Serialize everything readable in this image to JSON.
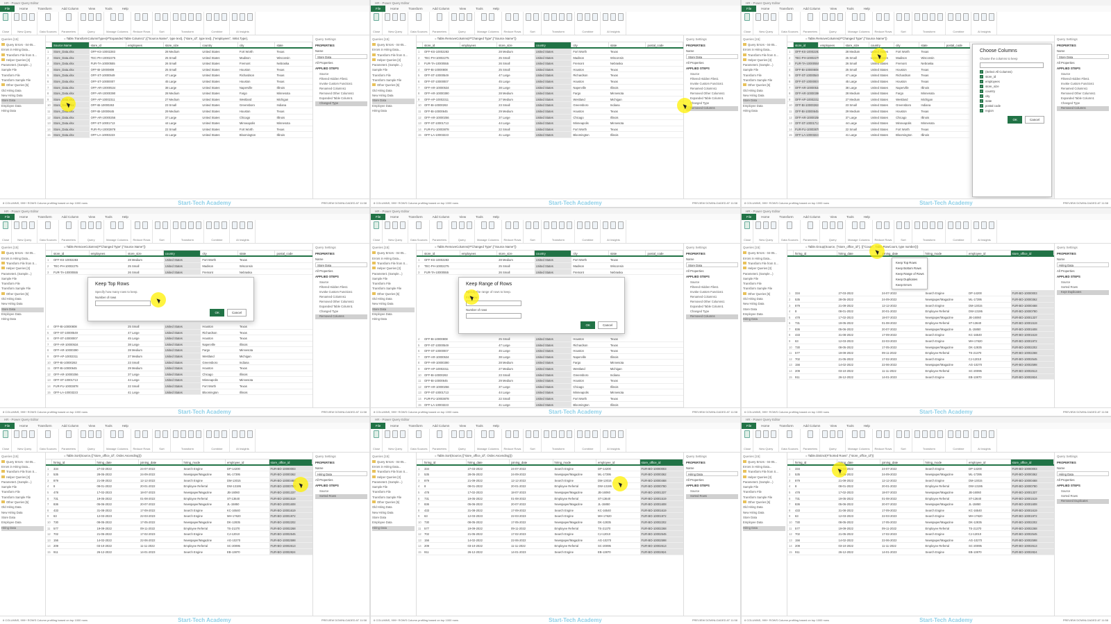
{
  "common": {
    "tabs": [
      "File",
      "Home",
      "Transform",
      "Add Column",
      "View",
      "Tools",
      "Help"
    ],
    "ribbon_groups": [
      "Close",
      "New Query",
      "Data Sources",
      "Parameters",
      "Query",
      "Manage Columns",
      "Reduce Rows",
      "Sort",
      "Transform",
      "Combine",
      "AI Insights"
    ],
    "queries_header": "Queries [15]",
    "queries": [
      {
        "label": "Query Errors - 04-05...",
        "folder": true
      },
      {
        "label": "Errors in Hiring Data..."
      },
      {
        "label": "Transform File from S...",
        "folder": true
      },
      {
        "label": "Helper Queries [3]",
        "folder": true
      },
      {
        "label": "Parameter1 (Sample...)"
      },
      {
        "label": "Sample File"
      },
      {
        "label": "Transform File"
      },
      {
        "label": "Transform Sample File"
      },
      {
        "label": "Other Queries [5]",
        "folder": true
      },
      {
        "label": "Old Hiring Data"
      },
      {
        "label": "New Hiring Data"
      },
      {
        "label": "Store Data"
      },
      {
        "label": "Employee Data"
      },
      {
        "label": "Hiring Data"
      }
    ],
    "settings_header": "Query Settings",
    "properties": "PROPERTIES",
    "name_label": "Name",
    "all_properties": "All Properties",
    "applied_steps": "APPLIED STEPS",
    "watermark": "Start-Tech Academy",
    "preview": "PREVIEW DOWNLOADED AT 11:58"
  },
  "datasets": {
    "store": [
      [
        "Store_Data.xlsx",
        "OFF-KS-10002283",
        "",
        "28 Medium",
        "United States",
        "Fort Worth",
        "Texas"
      ],
      [
        "Store_Data.xlsx",
        "TEC-PH-10002275",
        "",
        "25 Small",
        "United States",
        "Madison",
        "Wisconsin"
      ],
      [
        "Store_Data.xlsx",
        "FUR-TA-10000555",
        "",
        "26 Small",
        "United States",
        "Fremont",
        "Nebraska"
      ],
      [
        "Store_Data.xlsx",
        "OFF-BI-10000808",
        "",
        "25 Small",
        "United States",
        "Houston",
        "Texas"
      ],
      [
        "Store_Data.xlsx",
        "OFF-ST-10000549",
        "",
        "47 Large",
        "United States",
        "Richardson",
        "Texas"
      ],
      [
        "Store_Data.xlsx",
        "OFF-ST-10000007",
        "",
        "45 Large",
        "United States",
        "Houston",
        "Texas"
      ],
      [
        "Store_Data.xlsx",
        "OFF-AR-10000534",
        "",
        "38 Large",
        "United States",
        "Naperville",
        "Illinois"
      ],
      [
        "Store_Data.xlsx",
        "OFF-AR-10000390",
        "",
        "28 Medium",
        "United States",
        "Fargo",
        "Minnesota"
      ],
      [
        "Store_Data.xlsx",
        "OFF-AP-10002311",
        "",
        "27 Medium",
        "United States",
        "Westland",
        "Michigan"
      ],
      [
        "Store_Data.xlsx",
        "OFF-BI-10000263",
        "",
        "23 Small",
        "United States",
        "Greensboro",
        "Indiana"
      ],
      [
        "Store_Data.xlsx",
        "OFF-BI-10000645",
        "",
        "29 Medium",
        "United States",
        "Houston",
        "Texas"
      ],
      [
        "Store_Data.xlsx",
        "OFF-AR-10000256",
        "",
        "37 Large",
        "United States",
        "Chicago",
        "Illinois"
      ],
      [
        "Store_Data.xlsx",
        "OFF-ST-10001713",
        "",
        "44 Large",
        "United States",
        "Minneapolis",
        "Minnesota"
      ],
      [
        "Store_Data.xlsx",
        "FUR-FU-10003878",
        "",
        "22 Small",
        "United States",
        "Fort Worth",
        "Texas"
      ],
      [
        "Store_Data.xlsx",
        "OFF-LA-10003223",
        "",
        "41 Large",
        "United States",
        "Bloomington",
        "Illinois"
      ]
    ],
    "hiring": [
      [
        "334",
        "27-03-2022",
        "24-07-2022",
        "Search Engine",
        "DP-14200",
        "FUR-BO-10000003"
      ],
      [
        "535",
        "28-05-2022",
        "24-09-2022",
        "Newspaper/Magazine",
        "ML-17395",
        "FUR-BO-10000362"
      ],
      [
        "879",
        "21-09-2022",
        "12-12-2022",
        "Search Engine",
        "DM-13015",
        "FUR-BO-10000468"
      ],
      [
        "8",
        "08-01-2022",
        "20-01-2022",
        "Employee Referral",
        "DW-13195",
        "FUR-BO-10000780"
      ],
      [
        "478",
        "17-02-2023",
        "18-07-2023",
        "Newspaper/Magazine",
        "JB-16060",
        "FUR-BO-10001337"
      ],
      [
        "731",
        "19-05-2022",
        "01-08-2022",
        "Employee Referral",
        "ST-13640",
        "FUR-BO-10001519"
      ],
      [
        "836",
        "05-06-2022",
        "20-07-2022",
        "Newspaper/Magazine",
        "JL-15850",
        "FUR-BO-10001608"
      ],
      [
        "433",
        "31-08-2022",
        "17-09-2022",
        "Search Engine",
        "KC-16540",
        "FUR-BO-10001619"
      ],
      [
        "63",
        "12-03-2023",
        "22-03-2023",
        "Search Engine",
        "MH-17620",
        "FUR-BO-10001972"
      ],
      [
        "730",
        "08-05-2022",
        "17-05-2022",
        "Newspaper/Magazine",
        "DK-12835",
        "FUR-BO-10002202"
      ],
      [
        "577",
        "19-09-2022",
        "09-11-2022",
        "Employee Referral",
        "TS-21370",
        "FUR-BO-10002268"
      ],
      [
        "702",
        "21-05-2022",
        "17-02-2023",
        "Search Engine",
        "CJ-12010",
        "FUR-BO-10002545"
      ],
      [
        "156",
        "14-02-2022",
        "22-06-2022",
        "Newspaper/Magazine",
        "AG-10270",
        "FUR-BO-10002598"
      ],
      [
        "209",
        "03-10-2022",
        "11-11-2022",
        "Employee Referral",
        "SC-20095",
        "FUR-BO-10002613"
      ],
      [
        "911",
        "26-12-2022",
        "14-01-2023",
        "Search Engine",
        "EB-13870",
        "FUR-BO-10002824"
      ]
    ]
  },
  "panels": [
    {
      "title": "HR - Power Query Editor",
      "dataset": "store",
      "formula": "= Table.TransformColumnTypes(#\"Expanded Table Column1\",{{\"Source.Name\", type text}, {\"store_id\", type text}, {\"employees\", Int64.Type},",
      "columns": [
        "Source.Name",
        "store_id",
        "employees",
        "store_size",
        "country",
        "city",
        "state"
      ],
      "selcol": 0,
      "selquery": 11,
      "name": "Store Data",
      "steps": [
        "Source",
        "Filtered Hidden Files1",
        "Invoke Custom Function1",
        "Renamed Columns1",
        "Removed Other Columns1",
        "Expanded Table Column1",
        "Changed Type"
      ],
      "selstep": 6,
      "status": "8 COLUMNS, 999+ ROWS   Column profiling based on top 1000 rows"
    },
    {
      "title": "HR - Power Query Editor",
      "dataset": "store",
      "drop": 1,
      "formula": "= Table.RemoveColumns(#\"Changed Type\",{\"Source.Name\"})",
      "columns": [
        "store_id",
        "employees",
        "store_size",
        "country",
        "city",
        "state",
        "postal_code"
      ],
      "selcol": 3,
      "selquery": 11,
      "name": "Store Data",
      "steps": [
        "Source",
        "Filtered Hidden Files1",
        "Invoke Custom Function1",
        "Renamed Columns1",
        "Removed Other Columns1",
        "Expanded Table Column1",
        "Changed Type",
        "Removed Columns"
      ],
      "selstep": 7,
      "status": "8 COLUMNS, 999+ ROWS   Column profiling based on top 1000 rows"
    },
    {
      "title": "HR - Power Query Editor",
      "dataset": "store",
      "drop": 1,
      "formula": "= Table.RemoveColumns(#\"Changed Type\",{\"Source.Name\"})",
      "columns": [
        "store_id",
        "employees",
        "store_size",
        "country",
        "city",
        "state",
        "postal_code"
      ],
      "selcol": 0,
      "selquery": 11,
      "name": "Store Data",
      "steps": [
        "Source",
        "Filtered Hidden Files1",
        "Invoke Custom Function1",
        "Renamed Columns1",
        "Removed Other Columns1",
        "Expanded Table Column1",
        "Changed Type",
        "Removed Columns"
      ],
      "selstep": 7,
      "status": "8 COLUMNS, 999+ ROWS   Column profiling based on top 1000 rows",
      "dialog": {
        "type": "choose",
        "title": "Choose Columns",
        "subtitle": "Choose the columns to keep",
        "items": [
          "(Select All Columns)",
          "store_id",
          "employees",
          "store_size",
          "country",
          "city",
          "state",
          "postal code",
          "region"
        ],
        "ok": "OK",
        "cancel": "Cancel"
      }
    },
    {
      "title": "HR - Power Query Editor",
      "dataset": "store",
      "drop": 1,
      "formula": "= Table.RemoveColumns(#\"Changed Type\",{\"Source.Name\"})",
      "columns": [
        "store_id",
        "employees",
        "store_size",
        "country",
        "city",
        "state",
        "postal_code"
      ],
      "selcol": 3,
      "selquery": 11,
      "name": "Store Data",
      "steps": [
        "Source",
        "Filtered Hidden Files1",
        "Invoke Custom Function1",
        "Renamed Columns1",
        "Removed Other Columns1",
        "Expanded Table Column1",
        "Changed Type",
        "Removed Columns"
      ],
      "selstep": 7,
      "status": "8 COLUMNS, 999+ ROWS   Column profiling based on top 1000 rows",
      "dialog": {
        "type": "top",
        "title": "Keep Top Rows",
        "subtitle": "Specify how many rows to keep.",
        "fields": [
          "Number of rows"
        ],
        "ok": "OK",
        "cancel": "Cancel"
      }
    },
    {
      "title": "HR - Power Query Editor",
      "dataset": "store",
      "drop": 1,
      "formula": "= Table.RemoveColumns(#\"Changed Type\",{\"Source.Name\"})",
      "columns": [
        "store_id",
        "employees",
        "store_size",
        "country",
        "city",
        "state",
        "postal_code"
      ],
      "selcol": 3,
      "selquery": 11,
      "name": "Store Data",
      "steps": [
        "Source",
        "Filtered Hidden Files1",
        "Invoke Custom Function1",
        "Renamed Columns1",
        "Removed Other Columns1",
        "Expanded Table Column1",
        "Changed Type",
        "Removed Columns"
      ],
      "selstep": 7,
      "status": "8 COLUMNS, 999+ ROWS   Column profiling based on top 1000 rows",
      "dialog": {
        "type": "range",
        "title": "Keep Range of Rows",
        "subtitle": "Specify the range of rows to keep.",
        "fields": [
          "First row",
          "Number of rows"
        ],
        "ok": "OK",
        "cancel": "Cancel"
      }
    },
    {
      "title": "HR - Power Query Editor",
      "dataset": "hiring",
      "formula": "= Table.Group(Source, {\"store_office_id\"}, {{\"Count\", Table.RowCount, type number}})",
      "columns": [
        "hiring_id",
        "hiring_date",
        "joining_date",
        "hiring_mode",
        "employee_id",
        "store_office_id"
      ],
      "selcol": 5,
      "selquery": 13,
      "name": "Hiring Data",
      "steps": [
        "Source",
        "Sorted Rows",
        "Kept Duplicates"
      ],
      "selstep": 2,
      "status": "6 COLUMNS, 999+ ROWS   Column profiling based on top 1000 rows",
      "menu": [
        "Keep Top Rows",
        "Keep Bottom Rows",
        "Keep Range of Rows",
        "Keep Duplicates",
        "Keep Errors"
      ]
    },
    {
      "title": "HR - Power Query Editor",
      "dataset": "hiring",
      "formula": "= Table.Sort(Source,{{\"store_office_id\", Order.Ascending}})",
      "columns": [
        "hiring_id",
        "hiring_date",
        "joining_date",
        "hiring_mode",
        "employee_id",
        "store_office_id"
      ],
      "selcol": 5,
      "selquery": 13,
      "name": "Hiring Data",
      "steps": [
        "Source",
        "Sorted Rows"
      ],
      "selstep": 1,
      "status": "6 COLUMNS, 999+ ROWS   Column profiling based on top 1000 rows"
    },
    {
      "title": "HR - Power Query Editor",
      "dataset": "hiring",
      "formula": "= Table.Sort(Source,{{\"store_office_id\", Order.Ascending}})",
      "columns": [
        "hiring_id",
        "hiring_date",
        "joining_date",
        "hiring_mode",
        "employee_id",
        "store_office_id"
      ],
      "selcol": 5,
      "selquery": 13,
      "name": "Hiring Data",
      "steps": [
        "Source",
        "Sorted Rows"
      ],
      "selstep": 1,
      "status": "6 COLUMNS, 999+ ROWS   Column profiling based on top 1000 rows"
    },
    {
      "title": "HR - Power Query Editor",
      "dataset": "hiring",
      "formula": "= Table.Distinct(#\"Sorted Rows\", {\"store_office_id\"})",
      "columns": [
        "hiring_id",
        "hiring_date",
        "joining_date",
        "hiring_mode",
        "employee_id",
        "store_office_id"
      ],
      "selcol": 5,
      "selquery": 13,
      "name": "Hiring Data",
      "steps": [
        "Source",
        "Sorted Rows",
        "Removed Duplicates"
      ],
      "selstep": 2,
      "status": "6 COLUMNS, 999+ ROWS   Column profiling based on top 1000 rows"
    }
  ]
}
